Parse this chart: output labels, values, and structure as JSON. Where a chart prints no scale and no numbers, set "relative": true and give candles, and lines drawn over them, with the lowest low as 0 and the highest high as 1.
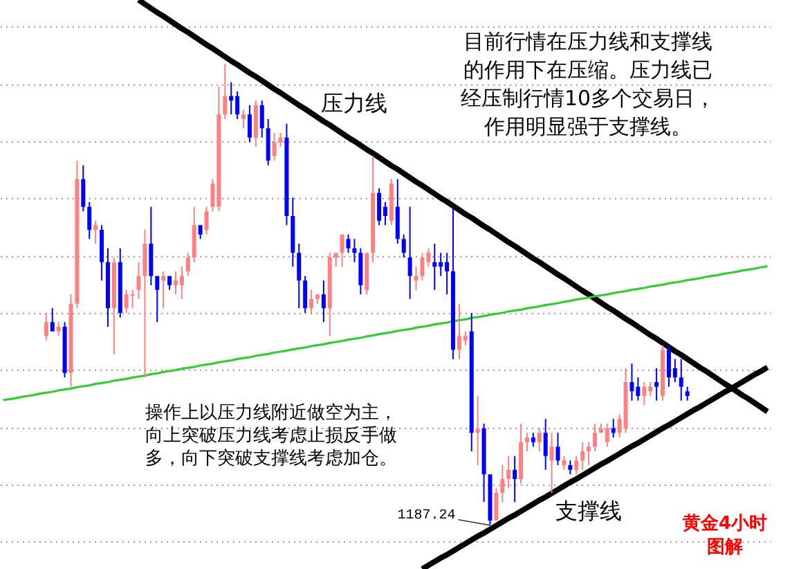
{
  "chart_data": {
    "type": "candlestick",
    "title": "黄金4小时图解",
    "relative": true,
    "grid": "y",
    "categories": [
      null,
      null,
      null,
      null,
      null,
      null,
      null,
      null,
      null,
      null,
      null,
      null,
      null,
      null,
      null,
      null,
      null,
      null,
      null,
      null,
      null,
      null,
      null,
      null,
      null,
      null,
      null,
      null,
      null,
      null,
      null,
      null,
      null,
      null,
      null,
      null,
      null,
      null,
      null,
      null,
      null,
      null,
      null,
      null,
      null,
      null,
      null,
      null,
      null,
      null,
      null,
      null,
      null,
      null,
      null,
      null,
      null,
      null,
      null,
      null,
      null,
      null,
      null,
      null,
      null,
      null,
      null,
      null,
      null,
      null,
      null,
      null,
      null,
      null,
      null,
      null,
      null,
      null,
      null,
      null,
      null,
      null,
      null,
      null,
      null,
      null,
      null,
      null,
      null,
      null,
      null,
      null,
      null,
      null,
      null,
      null,
      null,
      null,
      null,
      null,
      null,
      null,
      null,
      null,
      null,
      null,
      null,
      null,
      null,
      null,
      null,
      null,
      null,
      null,
      null,
      null,
      null,
      null,
      null,
      null,
      null,
      null,
      null,
      null,
      null
    ],
    "ohlc": [
      null,
      null,
      null,
      null,
      null,
      null,
      null,
      [
        0.41,
        0.46,
        0.4,
        0.44
      ],
      [
        0.44,
        0.47,
        0.42,
        0.42
      ],
      [
        0.42,
        0.44,
        0.41,
        0.43
      ],
      [
        0.43,
        0.44,
        0.32,
        0.33
      ],
      [
        0.33,
        0.5,
        0.3,
        0.48
      ],
      [
        0.48,
        0.79,
        0.47,
        0.75
      ],
      [
        0.75,
        0.78,
        0.68,
        0.69
      ],
      [
        0.69,
        0.7,
        0.62,
        0.64
      ],
      [
        0.64,
        0.66,
        0.61,
        0.65
      ],
      [
        0.64,
        0.65,
        0.53,
        0.57
      ],
      [
        0.57,
        0.6,
        0.43,
        0.47
      ],
      [
        0.47,
        0.58,
        0.37,
        0.57
      ],
      [
        0.57,
        0.6,
        0.45,
        0.46
      ],
      [
        0.47,
        0.51,
        0.46,
        0.5
      ],
      [
        0.5,
        0.51,
        0.47,
        0.5
      ],
      [
        0.51,
        0.57,
        0.49,
        0.54
      ],
      [
        0.54,
        0.64,
        0.32,
        0.61
      ],
      [
        0.61,
        0.69,
        0.52,
        0.54
      ],
      [
        0.54,
        0.54,
        0.44,
        0.51
      ],
      [
        0.53,
        0.55,
        0.47,
        0.54
      ],
      [
        0.54,
        0.54,
        0.51,
        0.52
      ],
      [
        0.52,
        0.55,
        0.5,
        0.53
      ],
      [
        0.52,
        0.56,
        0.49,
        0.54
      ],
      [
        0.55,
        0.59,
        0.54,
        0.58
      ],
      [
        0.58,
        0.69,
        0.57,
        0.65
      ],
      [
        0.65,
        0.65,
        0.62,
        0.63
      ],
      [
        0.64,
        0.69,
        0.63,
        0.68
      ],
      [
        0.69,
        0.75,
        0.68,
        0.74
      ],
      [
        0.69,
        0.95,
        0.68,
        0.89
      ],
      [
        0.89,
        1.0,
        0.88,
        0.93
      ],
      [
        0.93,
        0.96,
        0.89,
        0.92
      ],
      [
        0.93,
        0.94,
        0.88,
        0.89
      ],
      [
        0.88,
        0.9,
        0.86,
        0.89
      ],
      [
        0.89,
        0.91,
        0.83,
        0.84
      ],
      [
        0.84,
        0.92,
        0.82,
        0.91
      ],
      [
        0.91,
        0.92,
        0.84,
        0.86
      ],
      [
        0.86,
        0.88,
        0.78,
        0.79
      ],
      [
        0.8,
        0.85,
        0.79,
        0.83
      ],
      [
        0.83,
        0.85,
        0.82,
        0.84
      ],
      [
        0.84,
        0.87,
        0.65,
        0.67
      ],
      [
        0.67,
        0.71,
        0.56,
        0.59
      ],
      [
        0.59,
        0.61,
        0.47,
        0.53
      ],
      [
        0.53,
        0.54,
        0.46,
        0.47
      ],
      [
        0.47,
        0.51,
        0.46,
        0.49
      ],
      [
        0.49,
        0.5,
        0.48,
        0.5
      ],
      [
        0.5,
        0.53,
        0.44,
        0.47
      ],
      [
        0.47,
        0.59,
        0.41,
        0.58
      ],
      [
        0.58,
        0.59,
        0.56,
        0.59
      ],
      [
        0.59,
        0.63,
        0.56,
        0.63
      ],
      [
        0.62,
        0.63,
        0.59,
        0.6
      ],
      [
        0.6,
        0.62,
        0.57,
        0.59
      ],
      [
        0.59,
        0.6,
        0.5,
        0.52
      ],
      [
        0.51,
        0.59,
        0.5,
        0.59
      ],
      [
        0.59,
        0.8,
        0.57,
        0.72
      ],
      [
        0.72,
        0.73,
        0.65,
        0.66
      ],
      [
        0.69,
        0.7,
        0.65,
        0.67
      ],
      [
        0.66,
        0.75,
        0.65,
        0.74
      ],
      [
        0.69,
        0.75,
        0.61,
        0.62
      ],
      [
        0.62,
        0.63,
        0.58,
        0.59
      ],
      [
        0.58,
        0.69,
        0.49,
        0.54
      ],
      [
        0.53,
        0.56,
        0.51,
        0.54
      ],
      [
        0.54,
        0.59,
        0.53,
        0.58
      ],
      [
        0.57,
        0.6,
        0.56,
        0.59
      ],
      [
        0.57,
        0.61,
        0.51,
        0.56
      ],
      [
        0.57,
        0.59,
        0.54,
        0.56
      ],
      [
        0.57,
        0.59,
        0.5,
        0.55
      ],
      [
        0.55,
        0.69,
        0.36,
        0.38
      ],
      [
        0.38,
        0.48,
        0.36,
        0.41
      ],
      [
        0.4,
        0.42,
        0.39,
        0.41
      ],
      [
        0.42,
        0.46,
        0.16,
        0.2
      ],
      [
        0.2,
        0.28,
        0.13,
        0.21
      ],
      [
        0.21,
        0.22,
        0.05,
        0.11
      ],
      [
        0.11,
        0.11,
        0.0,
        0.01
      ],
      [
        0.01,
        0.08,
        0.01,
        0.07
      ],
      [
        0.07,
        0.13,
        0.05,
        0.1
      ],
      [
        0.1,
        0.15,
        0.08,
        0.12
      ],
      [
        0.12,
        0.15,
        0.05,
        0.1
      ],
      [
        0.1,
        0.22,
        0.09,
        0.18
      ],
      [
        0.18,
        0.2,
        0.16,
        0.19
      ],
      [
        0.19,
        0.2,
        0.17,
        0.18
      ],
      [
        0.18,
        0.21,
        0.16,
        0.2
      ],
      [
        0.2,
        0.23,
        0.12,
        0.15
      ],
      [
        0.14,
        0.2,
        0.07,
        0.17
      ],
      [
        0.17,
        0.2,
        0.13,
        0.14
      ],
      [
        0.13,
        0.15,
        0.12,
        0.14
      ],
      [
        0.13,
        0.14,
        0.11,
        0.12
      ],
      [
        0.12,
        0.15,
        0.11,
        0.14
      ],
      [
        0.14,
        0.18,
        0.12,
        0.16
      ],
      [
        0.16,
        0.18,
        0.13,
        0.17
      ],
      [
        0.17,
        0.22,
        0.16,
        0.2
      ],
      [
        0.2,
        0.22,
        0.2,
        0.21
      ],
      [
        0.18,
        0.22,
        0.17,
        0.21
      ],
      [
        0.21,
        0.23,
        0.19,
        0.2
      ],
      [
        0.2,
        0.24,
        0.19,
        0.23
      ],
      [
        0.21,
        0.34,
        0.2,
        0.31
      ],
      [
        0.31,
        0.35,
        0.27,
        0.29
      ],
      [
        0.3,
        0.32,
        0.27,
        0.28
      ],
      [
        0.28,
        0.31,
        0.26,
        0.3
      ],
      [
        0.29,
        0.31,
        0.28,
        0.3
      ],
      [
        0.31,
        0.34,
        0.27,
        0.3
      ],
      [
        0.28,
        0.39,
        0.27,
        0.38
      ],
      [
        0.38,
        0.39,
        0.3,
        0.32
      ],
      [
        0.34,
        0.36,
        0.31,
        0.32
      ],
      [
        0.32,
        0.36,
        0.27,
        0.3
      ],
      [
        0.29,
        0.3,
        0.27,
        0.28
      ],
      null,
      null,
      null,
      null,
      null,
      null,
      null,
      null,
      null,
      null,
      null,
      null,
      null
    ],
    "colors": [
      null,
      null,
      null,
      null,
      null,
      null,
      null,
      "#ff8080",
      "#0000ff",
      "#ff8080",
      "#0000ff",
      "#ff8080",
      "#ff8080",
      "#0000ff",
      "#0000ff",
      "#ff8080",
      "#0000ff",
      "#0000ff",
      "#ff8080",
      "#0000ff",
      "#ff8080",
      "#ff8080",
      "#ff8080",
      "#ff8080",
      "#0000ff",
      "#0000ff",
      "#ff8080",
      "#0000ff",
      "#ff8080",
      "#ff8080",
      "#ff8080",
      "#ff8080",
      "#0000ff",
      "#ff8080",
      "#ff8080",
      "#ff8080",
      "#ff8080",
      "#0000ff",
      "#0000ff",
      "#ff8080",
      "#0000ff",
      "#ff8080",
      "#0000ff",
      "#0000ff",
      "#ff8080",
      "#ff8080",
      "#0000ff",
      "#0000ff",
      "#0000ff",
      "#0000ff",
      "#ff8080",
      "#ff8080",
      "#0000ff",
      "#ff8080",
      "#ff8080",
      "#ff8080",
      "#0000ff",
      "#0000ff",
      "#0000ff",
      "#ff8080",
      "#ff8080",
      "#0000ff",
      "#0000ff",
      "#ff8080",
      "#0000ff",
      "#0000ff",
      "#0000ff",
      "#ff8080",
      "#ff8080",
      "#ff8080",
      "#0000ff",
      "#0000ff",
      "#0000ff",
      "#0000ff",
      "#ff8080",
      "#ff8080",
      "#0000ff",
      "#ff8080",
      "#0000ff",
      "#0000ff",
      "#ff8080",
      "#ff8080",
      "#ff8080",
      "#0000ff",
      "#ff8080",
      "#ff8080",
      "#0000ff",
      "#ff8080",
      "#0000ff",
      "#ff8080",
      "#0000ff",
      "#ff8080",
      "#0000ff",
      "#ff8080",
      "#ff8080",
      "#ff8080",
      "#ff8080",
      "#ff8080",
      "#ff8080",
      "#0000ff",
      "#ff8080",
      "#ff8080",
      "#0000ff",
      "#0000ff",
      "#ff8080",
      "#ff8080",
      "#0000ff",
      "#ff8080",
      "#0000ff",
      "#0000ff",
      "#0000ff",
      "#0000ff",
      null,
      null,
      null,
      null,
      null,
      null,
      null,
      null,
      null,
      null,
      null,
      null,
      null
    ],
    "series": [
      {
        "type": "line",
        "name": "压力线",
        "color": "#000000",
        "values": [
          null,
          null,
          null,
          null,
          null,
          null,
          null,
          null,
          null,
          null,
          null,
          null,
          null,
          null,
          null,
          null,
          null,
          null,
          null,
          null,
          null,
          null,
          1.138,
          1.129,
          1.12,
          1.111,
          1.103,
          1.094,
          1.085,
          1.076,
          1.068,
          1.059,
          1.05,
          1.041,
          1.033,
          1.024,
          1.015,
          1.006,
          0.998,
          0.989,
          0.98,
          0.972,
          0.963,
          0.954,
          0.945,
          0.937,
          0.928,
          0.919,
          0.91,
          0.902,
          0.893,
          0.884,
          0.875,
          0.867,
          0.858,
          0.849,
          0.84,
          0.832,
          0.823,
          0.814,
          0.806,
          0.797,
          0.788,
          0.779,
          0.771,
          0.762,
          0.753,
          0.744,
          0.736,
          0.727,
          0.718,
          0.709,
          0.701,
          0.692,
          0.683,
          0.674,
          0.666,
          0.657,
          0.648,
          0.64,
          0.631,
          0.622,
          0.613,
          0.605,
          0.596,
          0.587,
          0.578,
          0.57,
          0.561,
          0.552,
          0.543,
          0.535,
          0.526,
          0.517,
          0.508,
          0.5,
          0.491,
          0.482,
          0.473,
          0.465,
          0.456,
          0.447,
          0.439,
          0.43,
          0.421,
          0.412,
          0.404,
          0.395,
          0.386,
          0.377,
          0.369,
          0.36,
          0.351,
          0.342,
          0.334,
          0.325,
          0.316,
          0.307,
          0.299,
          0.29,
          0.281,
          0.273,
          0.264,
          0.255,
          0.246
        ]
      },
      {
        "type": "line",
        "color": "#33cc33",
        "values": [
          0.271,
          0.273,
          0.275,
          0.278,
          0.28,
          0.282,
          0.285,
          0.287,
          0.289,
          0.292,
          0.294,
          0.296,
          0.299,
          0.301,
          0.303,
          0.306,
          0.308,
          0.31,
          0.313,
          0.315,
          0.317,
          0.32,
          0.322,
          0.324,
          0.327,
          0.329,
          0.332,
          0.334,
          0.336,
          0.339,
          0.341,
          0.343,
          0.346,
          0.348,
          0.35,
          0.353,
          0.355,
          0.357,
          0.36,
          0.362,
          0.364,
          0.367,
          0.369,
          0.371,
          0.374,
          0.376,
          0.378,
          0.381,
          0.383,
          0.385,
          0.388,
          0.39,
          0.392,
          0.395,
          0.397,
          0.399,
          0.402,
          0.404,
          0.406,
          0.409,
          0.411,
          0.414,
          0.416,
          0.418,
          0.421,
          0.423,
          0.425,
          0.428,
          0.43,
          0.432,
          0.435,
          0.437,
          0.439,
          0.442,
          0.444,
          0.446,
          0.449,
          0.451,
          0.453,
          0.456,
          0.458,
          0.46,
          0.463,
          0.465,
          0.467,
          0.47,
          0.472,
          0.474,
          0.477,
          0.479,
          0.481,
          0.484,
          0.486,
          0.489,
          0.491,
          0.493,
          0.496,
          0.498,
          0.5,
          0.503,
          0.505,
          0.507,
          0.51,
          0.512,
          0.514,
          0.517,
          0.519,
          0.521,
          0.524,
          0.526,
          0.528,
          0.531,
          0.533,
          0.535,
          0.538,
          0.54,
          0.542,
          0.545,
          0.547,
          0.549,
          0.552,
          0.554,
          0.556,
          0.559,
          0.561
        ]
      },
      {
        "type": "line",
        "name": "支撑线",
        "color": "#000000",
        "values": [
          null,
          null,
          null,
          null,
          null,
          null,
          null,
          null,
          null,
          null,
          null,
          null,
          null,
          null,
          null,
          null,
          null,
          null,
          null,
          null,
          null,
          null,
          null,
          null,
          null,
          null,
          null,
          null,
          null,
          null,
          null,
          null,
          null,
          null,
          null,
          null,
          null,
          null,
          null,
          null,
          null,
          null,
          null,
          null,
          null,
          null,
          null,
          null,
          null,
          null,
          null,
          null,
          null,
          null,
          null,
          null,
          null,
          null,
          null,
          null,
          null,
          null,
          null,
          null,
          null,
          null,
          null,
          null,
          -0.095,
          -0.087,
          -0.079,
          -0.071,
          -0.064,
          -0.056,
          -0.048,
          -0.04,
          -0.032,
          -0.024,
          -0.017,
          -0.009,
          -0.001,
          0.007,
          0.015,
          0.022,
          0.03,
          0.038,
          0.046,
          0.054,
          0.061,
          0.069,
          0.077,
          0.085,
          0.093,
          0.1,
          0.108,
          0.116,
          0.124,
          0.132,
          0.139,
          0.147,
          0.155,
          0.163,
          0.171,
          0.178,
          0.186,
          0.194,
          0.202,
          0.21,
          0.217,
          0.225,
          0.233,
          0.241,
          0.249,
          0.256,
          0.264,
          0.272,
          0.28,
          0.288,
          0.295,
          0.303,
          0.311,
          0.319,
          0.327,
          0.334,
          0.342
        ]
      }
    ],
    "annotations": [
      "目前行情在压力线和支撑线的作用下在压缩。压力线已经压制行情10多个交易日，作用明显强于支撑线。",
      "操作上以压力线附近做空为主，向上突破压力线考虑止损反手做多，向下突破支撑线考虑加仓。",
      "1187.24"
    ]
  }
}
